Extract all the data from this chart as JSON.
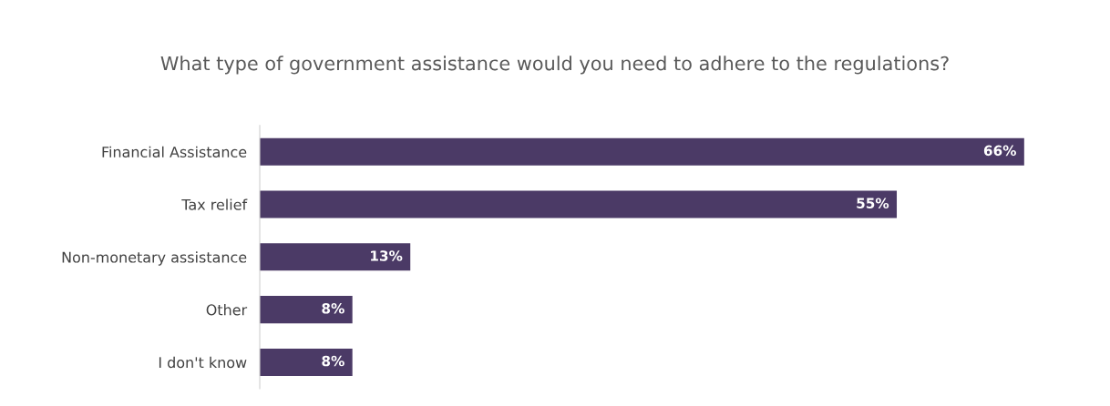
{
  "chart_data": {
    "type": "bar",
    "orientation": "horizontal",
    "title": "What type of government assistance would you need to adhere to the regulations?",
    "categories": [
      "Financial Assistance",
      "Tax relief",
      "Non-monetary assistance",
      "Other",
      "I don't know"
    ],
    "values": [
      66,
      55,
      13,
      8,
      8
    ],
    "value_labels": [
      "66%",
      "55%",
      "13%",
      "8%",
      "8%"
    ],
    "color": "#4b3a66",
    "grid": false,
    "legend": false
  }
}
